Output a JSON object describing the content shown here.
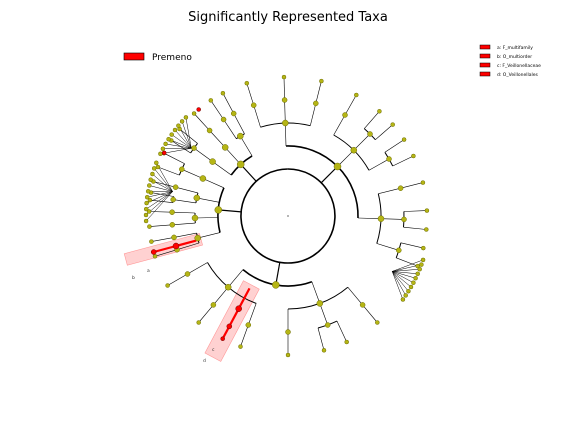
{
  "title": "Significantly Represented Taxa",
  "class_legend": {
    "label": "Premeno",
    "color": "#ff0000"
  },
  "clade_legend": [
    {
      "key": "a",
      "label": "a: F_multifamily"
    },
    {
      "key": "b",
      "label": "b: O_multiorder"
    },
    {
      "key": "c",
      "label": "c: F_Veillonellaceae"
    },
    {
      "key": "d",
      "label": "d: O_Veillonellales"
    }
  ],
  "clade_labels": [
    {
      "key": "a",
      "text": "a"
    },
    {
      "key": "b",
      "text": "b"
    },
    {
      "key": "c",
      "text": "c"
    },
    {
      "key": "d",
      "text": "d"
    }
  ],
  "colors": {
    "node": "#b5b515",
    "node_edge": "#6b6b00",
    "highlight": "#ff0000",
    "edge": "#000000"
  }
}
